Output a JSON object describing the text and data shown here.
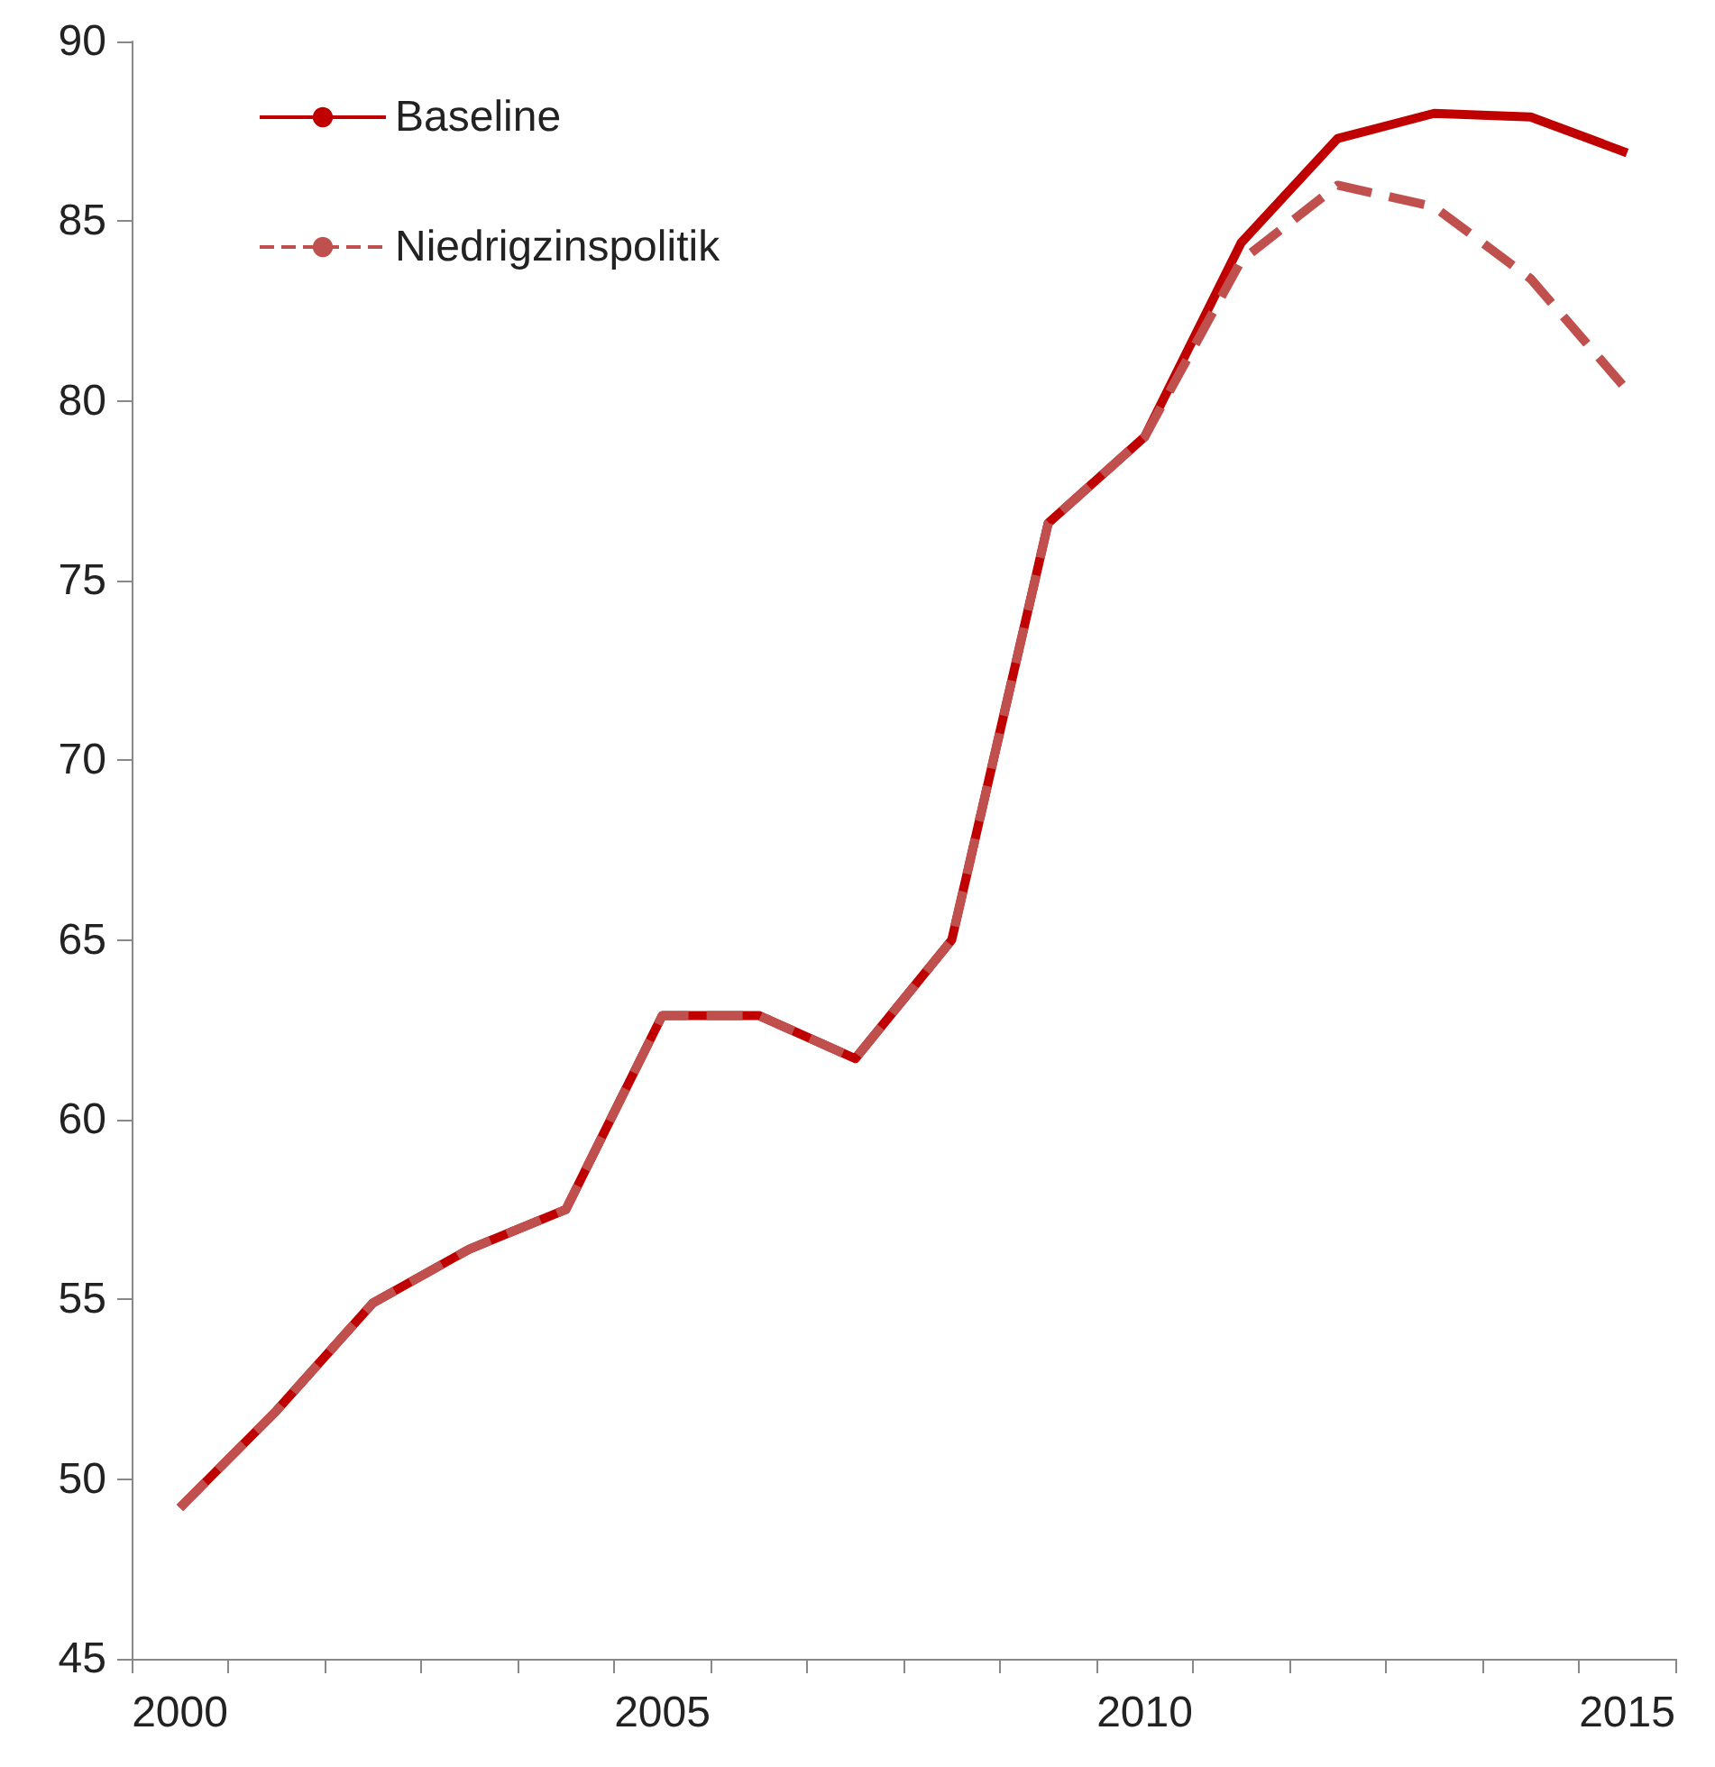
{
  "chart_data": {
    "type": "line",
    "categories": [
      "2000",
      null,
      null,
      null,
      null,
      "2005",
      null,
      null,
      null,
      null,
      "2010",
      null,
      null,
      null,
      null,
      "2015"
    ],
    "series": [
      {
        "name": "Baseline",
        "color": "#c00000",
        "line_style": "solid",
        "values": [
          49.2,
          51.9,
          54.9,
          56.4,
          57.5,
          62.9,
          62.9,
          61.7,
          65.0,
          76.6,
          79.0,
          84.4,
          87.3,
          88.0,
          87.9,
          86.9
        ]
      },
      {
        "name": "Niedrigzinspolitik",
        "color": "#c0504d",
        "line_style": "dashed",
        "values": [
          49.2,
          51.9,
          54.9,
          56.4,
          57.5,
          62.9,
          62.9,
          61.7,
          65.0,
          76.6,
          79.0,
          83.9,
          86.0,
          85.4,
          83.4,
          80.3
        ]
      }
    ],
    "ylim": [
      45,
      90
    ],
    "yticks": [
      45,
      50,
      55,
      60,
      65,
      70,
      75,
      80,
      85,
      90
    ],
    "grid": false,
    "legend": "top left",
    "marker": "none"
  }
}
